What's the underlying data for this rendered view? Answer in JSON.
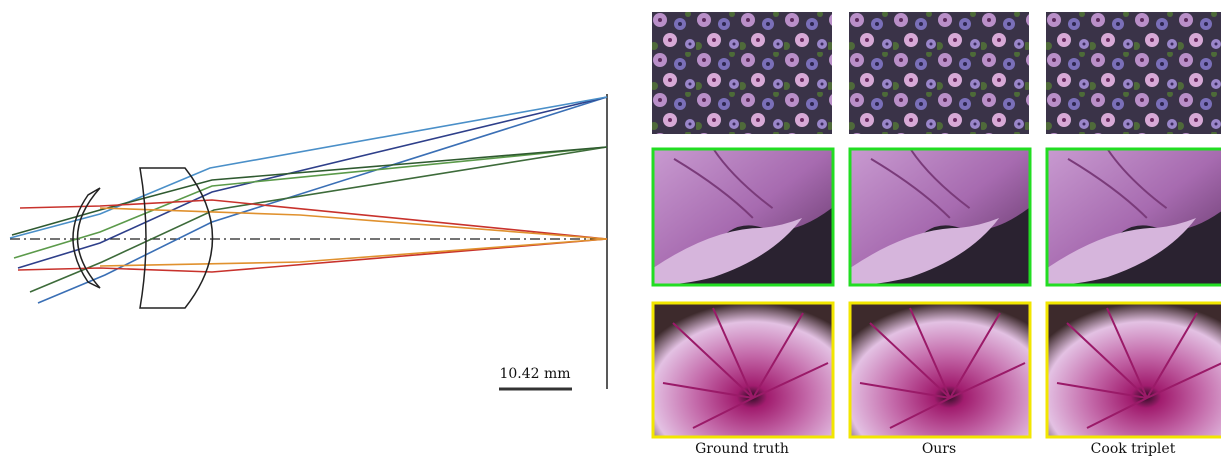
{
  "scale_bar": {
    "label": "10.42 mm"
  },
  "columns": [
    "Ground truth",
    "Ours",
    "Cook triplet"
  ]
}
